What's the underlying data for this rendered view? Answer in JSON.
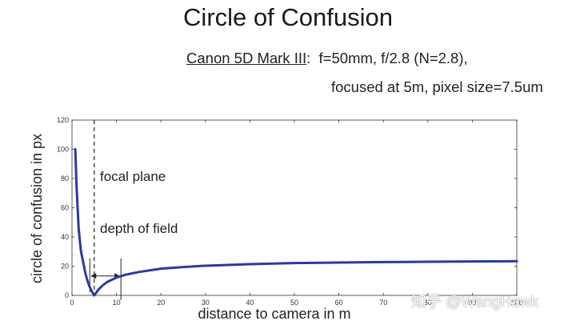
{
  "slide": {
    "title": "Circle of Confusion",
    "camera_model": "Canon 5D Mark III",
    "camera_sep": ":",
    "params_line1": "f=50mm, f/2.8 (N=2.8),",
    "params_line2": "focused at 5m, pixel size=7.5um",
    "watermark": "知乎 @WangHawk"
  },
  "chart_data": {
    "type": "line",
    "title": "",
    "xlabel": "distance to camera in m",
    "ylabel": "circle of confusion in px",
    "xlim": [
      0,
      100
    ],
    "ylim": [
      0,
      120
    ],
    "xticks": [
      0,
      10,
      20,
      30,
      40,
      50,
      60,
      70,
      80,
      90,
      100
    ],
    "yticks": [
      0,
      20,
      40,
      60,
      80,
      100,
      120
    ],
    "grid": false,
    "series": [
      {
        "name": "circle of confusion",
        "color": "#2b3a9e",
        "x": [
          0.75,
          1,
          1.5,
          2,
          2.5,
          3,
          3.5,
          4,
          4.5,
          5,
          6,
          7,
          8,
          10,
          12,
          15,
          20,
          25,
          30,
          40,
          50,
          60,
          70,
          80,
          90,
          100
        ],
        "y": [
          100,
          76.2,
          45.7,
          30.5,
          22.9,
          15.2,
          9.8,
          5.7,
          2.5,
          0,
          4.2,
          7.1,
          9.3,
          12.2,
          14.1,
          16.0,
          18.3,
          19.4,
          20.3,
          21.4,
          22.1,
          22.5,
          22.8,
          23.0,
          23.2,
          23.4
        ]
      }
    ],
    "annotations": {
      "focal_plane": {
        "label": "focal plane",
        "x": 5
      },
      "depth_of_field": {
        "label": "depth of field",
        "x_start": 4,
        "x_end": 11,
        "y": 16
      }
    }
  }
}
